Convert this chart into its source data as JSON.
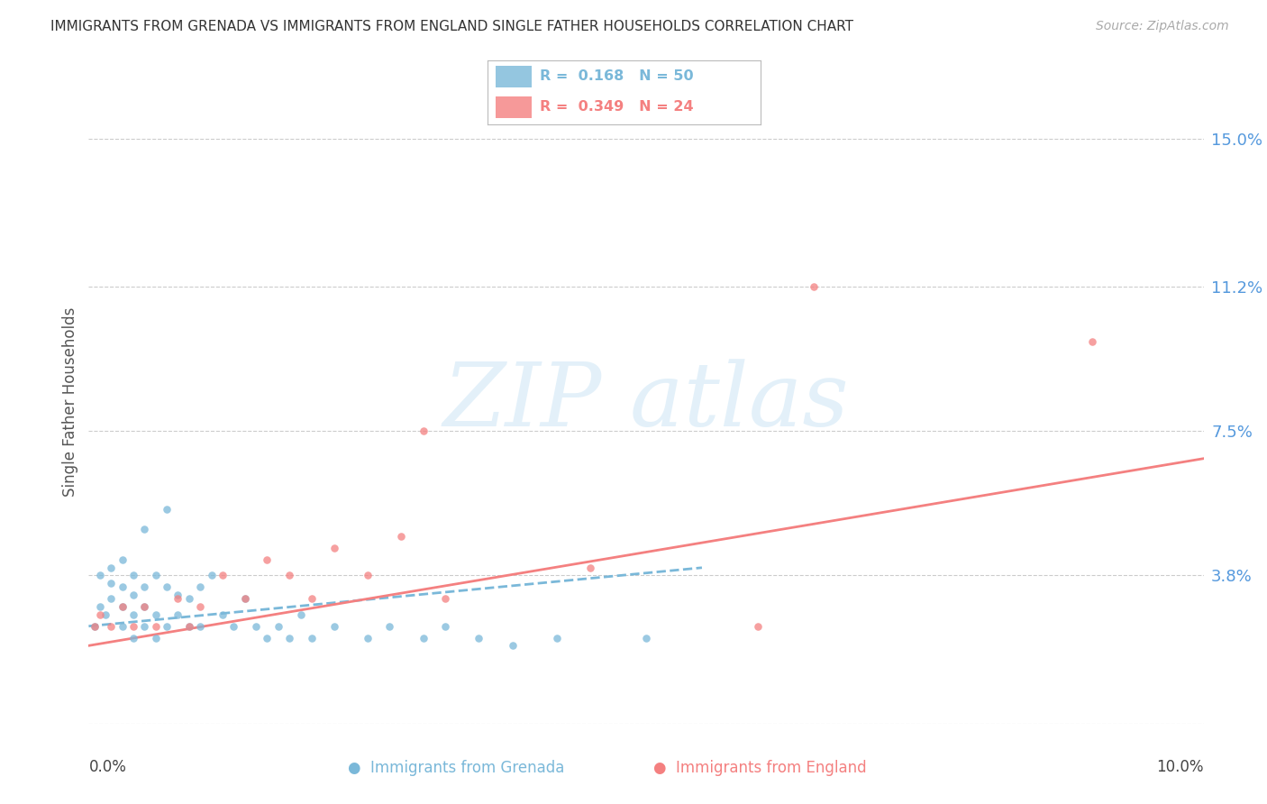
{
  "title": "IMMIGRANTS FROM GRENADA VS IMMIGRANTS FROM ENGLAND SINGLE FATHER HOUSEHOLDS CORRELATION CHART",
  "source": "Source: ZipAtlas.com",
  "ylabel": "Single Father Households",
  "y_ticks": [
    0.0,
    0.038,
    0.075,
    0.112,
    0.15
  ],
  "y_tick_labels": [
    "",
    "3.8%",
    "7.5%",
    "11.2%",
    "15.0%"
  ],
  "xlim": [
    0.0,
    0.1
  ],
  "ylim": [
    0.0,
    0.165
  ],
  "grenada_color": "#7ab8d9",
  "england_color": "#f48080",
  "grenada_scatter_x": [
    0.0005,
    0.001,
    0.001,
    0.0015,
    0.002,
    0.002,
    0.002,
    0.003,
    0.003,
    0.003,
    0.003,
    0.004,
    0.004,
    0.004,
    0.004,
    0.005,
    0.005,
    0.005,
    0.005,
    0.006,
    0.006,
    0.006,
    0.007,
    0.007,
    0.007,
    0.008,
    0.008,
    0.009,
    0.009,
    0.01,
    0.01,
    0.011,
    0.012,
    0.013,
    0.014,
    0.015,
    0.016,
    0.017,
    0.018,
    0.019,
    0.02,
    0.022,
    0.025,
    0.027,
    0.03,
    0.032,
    0.035,
    0.038,
    0.042,
    0.05
  ],
  "grenada_scatter_y": [
    0.025,
    0.03,
    0.038,
    0.028,
    0.032,
    0.036,
    0.04,
    0.025,
    0.03,
    0.035,
    0.042,
    0.022,
    0.028,
    0.033,
    0.038,
    0.025,
    0.03,
    0.035,
    0.05,
    0.022,
    0.028,
    0.038,
    0.025,
    0.035,
    0.055,
    0.028,
    0.033,
    0.025,
    0.032,
    0.025,
    0.035,
    0.038,
    0.028,
    0.025,
    0.032,
    0.025,
    0.022,
    0.025,
    0.022,
    0.028,
    0.022,
    0.025,
    0.022,
    0.025,
    0.022,
    0.025,
    0.022,
    0.02,
    0.022,
    0.022
  ],
  "england_scatter_x": [
    0.0005,
    0.001,
    0.002,
    0.003,
    0.004,
    0.005,
    0.006,
    0.008,
    0.009,
    0.01,
    0.012,
    0.014,
    0.016,
    0.018,
    0.02,
    0.022,
    0.025,
    0.028,
    0.03,
    0.032,
    0.045,
    0.06,
    0.065,
    0.09
  ],
  "england_scatter_y": [
    0.025,
    0.028,
    0.025,
    0.03,
    0.025,
    0.03,
    0.025,
    0.032,
    0.025,
    0.03,
    0.038,
    0.032,
    0.042,
    0.038,
    0.032,
    0.045,
    0.038,
    0.048,
    0.075,
    0.032,
    0.04,
    0.025,
    0.112,
    0.098
  ],
  "grenada_line_x": [
    0.0,
    0.055
  ],
  "grenada_line_y": [
    0.025,
    0.04
  ],
  "england_line_x": [
    0.0,
    0.1
  ],
  "england_line_y": [
    0.02,
    0.068
  ],
  "watermark_text": "ZIP atlas",
  "background_color": "#ffffff",
  "grid_color": "#cccccc",
  "tick_color": "#5599dd",
  "legend_r1": "R =  0.168   N = 50",
  "legend_r2": "R =  0.349   N = 24",
  "bottom_label1": "Immigrants from Grenada",
  "bottom_label2": "Immigrants from England"
}
